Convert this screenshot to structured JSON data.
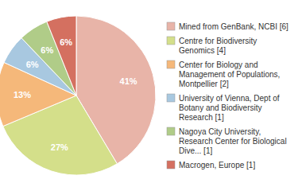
{
  "chart_data": {
    "type": "pie",
    "categories": [
      "Mined from GenBank, NCBI [6]",
      "Centre for Biodiversity\nGenomics [4]",
      "Center for Biology and\nManagement of Populations,\nMontpellier [2]",
      "University of Vienna, Dept of\nBotany and Biodiversity\nResearch [1]",
      "Nagoya City University,\nResearch Center for Biological\nDive... [1]",
      "Macrogen, Europe [1]"
    ],
    "values": [
      41,
      27,
      13,
      6,
      6,
      6
    ],
    "value_labels": [
      "41%",
      "27%",
      "13%",
      "6%",
      "6%",
      "6%"
    ],
    "colors": [
      "#e8b4a8",
      "#d4df8a",
      "#f5b87a",
      "#a8c8e0",
      "#b0cc88",
      "#d47060"
    ],
    "data_labels": true,
    "legend": "right"
  }
}
